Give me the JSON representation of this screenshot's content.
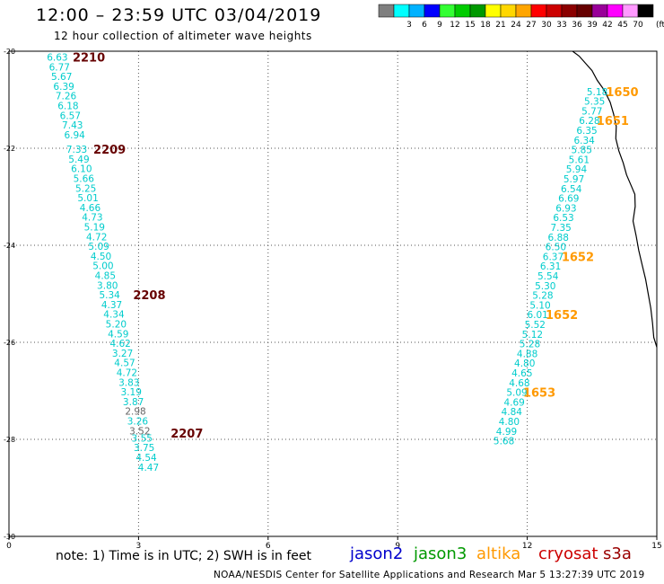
{
  "header": {
    "title": "12:00 – 23:59 UTC 03/04/2019",
    "subtitle": "12 hour collection of altimeter wave heights"
  },
  "legend": {
    "unit": "(ft)",
    "bins": [
      {
        "label": "",
        "color": "#7f7f7f"
      },
      {
        "label": "3",
        "color": "#00ffff"
      },
      {
        "label": "6",
        "color": "#00b2ff"
      },
      {
        "label": "9",
        "color": "#0000ff"
      },
      {
        "label": "12",
        "color": "#33ff33"
      },
      {
        "label": "15",
        "color": "#00cc00"
      },
      {
        "label": "18",
        "color": "#009900"
      },
      {
        "label": "21",
        "color": "#ffff00"
      },
      {
        "label": "24",
        "color": "#ffd700"
      },
      {
        "label": "27",
        "color": "#ffa500"
      },
      {
        "label": "30",
        "color": "#ff0000"
      },
      {
        "label": "33",
        "color": "#cc0000"
      },
      {
        "label": "36",
        "color": "#8b0000"
      },
      {
        "label": "39",
        "color": "#660000"
      },
      {
        "label": "42",
        "color": "#990099"
      },
      {
        "label": "45",
        "color": "#ff00ff"
      },
      {
        "label": "70",
        "color": "#ff99ff"
      },
      {
        "label": "",
        "color": "#000000"
      }
    ]
  },
  "footer": {
    "note": "note: 1) Time is in UTC; 2) SWH is in feet",
    "satellites": [
      {
        "name": "jason2",
        "color": "#0000cc"
      },
      {
        "name": "jason3",
        "color": "#009900"
      },
      {
        "name": "altika",
        "color": "#ff9900"
      },
      {
        "name": "cryosat",
        "color": "#cc0000"
      },
      {
        "name": "s3a",
        "color": "#990000"
      }
    ],
    "credit": "NOAA/NESDIS Center for Satellite Applications and Research   Mar  5 13:27:39 UTC 2019"
  },
  "colors": {
    "swh_cyan": "#00cccc",
    "swh_gray": "#666666",
    "time_altika": "#ff9900",
    "time_cryosat": "#660000",
    "coastline": "#000000"
  },
  "chart_data": {
    "type": "scatter",
    "xlim": [
      0,
      15
    ],
    "ylim": [
      -30,
      -20
    ],
    "xticks": [
      {
        "v": 0,
        "label": "0"
      },
      {
        "v": 3,
        "label": "3"
      },
      {
        "v": 6,
        "label": "6"
      },
      {
        "v": 9,
        "label": "9"
      },
      {
        "v": 12,
        "label": "12"
      },
      {
        "v": 15,
        "label": "15"
      }
    ],
    "yticks": [
      {
        "v": -20,
        "label": "-20"
      },
      {
        "v": -22,
        "label": "-22"
      },
      {
        "v": -24,
        "label": "-24"
      },
      {
        "v": -26,
        "label": "-26"
      },
      {
        "v": -28,
        "label": "-28"
      },
      {
        "v": -30,
        "label": "-30"
      }
    ],
    "grid": true,
    "tracks": [
      {
        "satellite": "cryosat",
        "points": [
          {
            "x": 1.12,
            "y": -20.12,
            "v": "6.63",
            "c": "swh_cyan"
          },
          {
            "x": 1.17,
            "y": -20.32,
            "v": "6.77",
            "c": "swh_cyan"
          },
          {
            "x": 1.22,
            "y": -20.52,
            "v": "5.67",
            "c": "swh_cyan"
          },
          {
            "x": 1.27,
            "y": -20.72,
            "v": "6.39",
            "c": "swh_cyan"
          },
          {
            "x": 1.32,
            "y": -20.92,
            "v": "7.26",
            "c": "swh_cyan"
          },
          {
            "x": 1.37,
            "y": -21.12,
            "v": "6.18",
            "c": "swh_cyan"
          },
          {
            "x": 1.42,
            "y": -21.32,
            "v": "6.57",
            "c": "swh_cyan"
          },
          {
            "x": 1.47,
            "y": -21.52,
            "v": "7.43",
            "c": "swh_cyan"
          },
          {
            "x": 1.52,
            "y": -21.72,
            "v": "6.94",
            "c": "swh_cyan"
          },
          {
            "x": 1.57,
            "y": -22.02,
            "v": "7.33",
            "c": "swh_cyan"
          },
          {
            "x": 1.62,
            "y": -22.22,
            "v": "5.49",
            "c": "swh_cyan"
          },
          {
            "x": 1.68,
            "y": -22.42,
            "v": "6.10",
            "c": "swh_cyan"
          },
          {
            "x": 1.73,
            "y": -22.62,
            "v": "5.66",
            "c": "swh_cyan"
          },
          {
            "x": 1.78,
            "y": -22.82,
            "v": "5.25",
            "c": "swh_cyan"
          },
          {
            "x": 1.83,
            "y": -23.02,
            "v": "5.01",
            "c": "swh_cyan"
          },
          {
            "x": 1.88,
            "y": -23.22,
            "v": "4.66",
            "c": "swh_cyan"
          },
          {
            "x": 1.93,
            "y": -23.42,
            "v": "4.73",
            "c": "swh_cyan"
          },
          {
            "x": 1.98,
            "y": -23.62,
            "v": "5.19",
            "c": "swh_cyan"
          },
          {
            "x": 2.03,
            "y": -23.82,
            "v": "4.72",
            "c": "swh_cyan"
          },
          {
            "x": 2.08,
            "y": -24.02,
            "v": "5.09",
            "c": "swh_cyan"
          },
          {
            "x": 2.13,
            "y": -24.22,
            "v": "4.50",
            "c": "swh_cyan"
          },
          {
            "x": 2.18,
            "y": -24.42,
            "v": "5.00",
            "c": "swh_cyan"
          },
          {
            "x": 2.23,
            "y": -24.62,
            "v": "4.85",
            "c": "swh_cyan"
          },
          {
            "x": 2.28,
            "y": -24.82,
            "v": "3.80",
            "c": "swh_cyan"
          },
          {
            "x": 2.33,
            "y": -25.02,
            "v": "5.34",
            "c": "swh_cyan"
          },
          {
            "x": 2.38,
            "y": -25.22,
            "v": "4.37",
            "c": "swh_cyan"
          },
          {
            "x": 2.43,
            "y": -25.42,
            "v": "4.34",
            "c": "swh_cyan"
          },
          {
            "x": 2.48,
            "y": -25.62,
            "v": "5.20",
            "c": "swh_cyan"
          },
          {
            "x": 2.53,
            "y": -25.82,
            "v": "4.59",
            "c": "swh_cyan"
          },
          {
            "x": 2.58,
            "y": -26.02,
            "v": "4.62",
            "c": "swh_cyan"
          },
          {
            "x": 2.63,
            "y": -26.22,
            "v": "3.27",
            "c": "swh_cyan"
          },
          {
            "x": 2.68,
            "y": -26.42,
            "v": "4.57",
            "c": "swh_cyan"
          },
          {
            "x": 2.73,
            "y": -26.62,
            "v": "4.72",
            "c": "swh_cyan"
          },
          {
            "x": 2.78,
            "y": -26.82,
            "v": "3.83",
            "c": "swh_cyan"
          },
          {
            "x": 2.83,
            "y": -27.02,
            "v": "3.19",
            "c": "swh_cyan"
          },
          {
            "x": 2.88,
            "y": -27.22,
            "v": "3.87",
            "c": "swh_cyan"
          },
          {
            "x": 2.93,
            "y": -27.42,
            "v": "2.98",
            "c": "swh_gray"
          },
          {
            "x": 2.98,
            "y": -27.62,
            "v": "3.26",
            "c": "swh_cyan"
          },
          {
            "x": 3.03,
            "y": -27.82,
            "v": "3.52",
            "c": "swh_gray"
          },
          {
            "x": 3.08,
            "y": -27.97,
            "v": "3.55",
            "c": "swh_cyan"
          },
          {
            "x": 3.13,
            "y": -28.17,
            "v": "3.75",
            "c": "swh_cyan"
          },
          {
            "x": 3.18,
            "y": -28.37,
            "v": "4.54",
            "c": "swh_cyan"
          },
          {
            "x": 3.23,
            "y": -28.57,
            "v": "4.47",
            "c": "swh_cyan"
          }
        ],
        "times": [
          {
            "x": 1.85,
            "y": -20.12,
            "label": "2210"
          },
          {
            "x": 2.33,
            "y": -22.02,
            "label": "2209"
          },
          {
            "x": 3.25,
            "y": -25.02,
            "label": "2208"
          },
          {
            "x": 4.12,
            "y": -27.87,
            "label": "2207"
          }
        ]
      },
      {
        "satellite": "altika",
        "points": [
          {
            "x": 13.62,
            "y": -20.83,
            "v": "5.18",
            "c": "swh_cyan"
          },
          {
            "x": 13.56,
            "y": -21.03,
            "v": "5.35",
            "c": "swh_cyan"
          },
          {
            "x": 13.5,
            "y": -21.23,
            "v": "5.77",
            "c": "swh_cyan"
          },
          {
            "x": 13.44,
            "y": -21.43,
            "v": "6.28",
            "c": "swh_cyan"
          },
          {
            "x": 13.38,
            "y": -21.63,
            "v": "6.35",
            "c": "swh_cyan"
          },
          {
            "x": 13.32,
            "y": -21.83,
            "v": "6.34",
            "c": "swh_cyan"
          },
          {
            "x": 13.26,
            "y": -22.03,
            "v": "5.85",
            "c": "swh_cyan"
          },
          {
            "x": 13.2,
            "y": -22.23,
            "v": "5.61",
            "c": "swh_cyan"
          },
          {
            "x": 13.14,
            "y": -22.43,
            "v": "5.94",
            "c": "swh_cyan"
          },
          {
            "x": 13.08,
            "y": -22.63,
            "v": "5.97",
            "c": "swh_cyan"
          },
          {
            "x": 13.02,
            "y": -22.83,
            "v": "6.54",
            "c": "swh_cyan"
          },
          {
            "x": 12.96,
            "y": -23.03,
            "v": "6.69",
            "c": "swh_cyan"
          },
          {
            "x": 12.9,
            "y": -23.23,
            "v": "6.93",
            "c": "swh_cyan"
          },
          {
            "x": 12.84,
            "y": -23.43,
            "v": "6.53",
            "c": "swh_cyan"
          },
          {
            "x": 12.78,
            "y": -23.63,
            "v": "7.35",
            "c": "swh_cyan"
          },
          {
            "x": 12.72,
            "y": -23.83,
            "v": "6.88",
            "c": "swh_cyan"
          },
          {
            "x": 12.66,
            "y": -24.03,
            "v": "6.50",
            "c": "swh_cyan"
          },
          {
            "x": 12.6,
            "y": -24.23,
            "v": "6.37",
            "c": "swh_cyan"
          },
          {
            "x": 12.54,
            "y": -24.43,
            "v": "6.31",
            "c": "swh_cyan"
          },
          {
            "x": 12.48,
            "y": -24.63,
            "v": "5.54",
            "c": "swh_cyan"
          },
          {
            "x": 12.42,
            "y": -24.83,
            "v": "5.30",
            "c": "swh_cyan"
          },
          {
            "x": 12.36,
            "y": -25.03,
            "v": "5.28",
            "c": "swh_cyan"
          },
          {
            "x": 12.3,
            "y": -25.23,
            "v": "5.10",
            "c": "swh_cyan"
          },
          {
            "x": 12.24,
            "y": -25.43,
            "v": "6.01",
            "c": "swh_cyan"
          },
          {
            "x": 12.18,
            "y": -25.63,
            "v": "5.52",
            "c": "swh_cyan"
          },
          {
            "x": 12.12,
            "y": -25.83,
            "v": "5.12",
            "c": "swh_cyan"
          },
          {
            "x": 12.06,
            "y": -26.03,
            "v": "5.28",
            "c": "swh_cyan"
          },
          {
            "x": 12.0,
            "y": -26.23,
            "v": "4.88",
            "c": "swh_cyan"
          },
          {
            "x": 11.94,
            "y": -26.43,
            "v": "4.80",
            "c": "swh_cyan"
          },
          {
            "x": 11.88,
            "y": -26.63,
            "v": "4.65",
            "c": "swh_cyan"
          },
          {
            "x": 11.82,
            "y": -26.83,
            "v": "4.68",
            "c": "swh_cyan"
          },
          {
            "x": 11.76,
            "y": -27.03,
            "v": "5.09",
            "c": "swh_cyan"
          },
          {
            "x": 11.7,
            "y": -27.23,
            "v": "4.69",
            "c": "swh_cyan"
          },
          {
            "x": 11.64,
            "y": -27.43,
            "v": "4.84",
            "c": "swh_cyan"
          },
          {
            "x": 11.58,
            "y": -27.63,
            "v": "4.80",
            "c": "swh_cyan"
          },
          {
            "x": 11.52,
            "y": -27.83,
            "v": "4.99",
            "c": "swh_cyan"
          },
          {
            "x": 11.46,
            "y": -28.03,
            "v": "5.68",
            "c": "swh_cyan"
          }
        ],
        "times": [
          {
            "x": 14.2,
            "y": -20.83,
            "label": "1650"
          },
          {
            "x": 13.98,
            "y": -21.43,
            "label": "1651"
          },
          {
            "x": 13.17,
            "y": -24.23,
            "label": "1652"
          },
          {
            "x": 12.8,
            "y": -25.43,
            "label": "1652"
          },
          {
            "x": 12.28,
            "y": -27.03,
            "label": "1653"
          }
        ]
      }
    ],
    "coastline": [
      [
        13.05,
        -20.0
      ],
      [
        13.2,
        -20.1
      ],
      [
        13.35,
        -20.25
      ],
      [
        13.5,
        -20.4
      ],
      [
        13.62,
        -20.6
      ],
      [
        13.78,
        -20.8
      ],
      [
        13.92,
        -21.05
      ],
      [
        14.0,
        -21.3
      ],
      [
        14.06,
        -21.55
      ],
      [
        14.05,
        -21.8
      ],
      [
        14.12,
        -22.05
      ],
      [
        14.22,
        -22.3
      ],
      [
        14.3,
        -22.55
      ],
      [
        14.42,
        -22.8
      ],
      [
        14.49,
        -22.95
      ],
      [
        14.5,
        -23.2
      ],
      [
        14.45,
        -23.5
      ],
      [
        14.52,
        -23.8
      ],
      [
        14.58,
        -24.1
      ],
      [
        14.66,
        -24.4
      ],
      [
        14.74,
        -24.7
      ],
      [
        14.8,
        -25.0
      ],
      [
        14.86,
        -25.3
      ],
      [
        14.9,
        -25.6
      ],
      [
        14.93,
        -25.9
      ],
      [
        15.0,
        -26.1
      ]
    ]
  }
}
